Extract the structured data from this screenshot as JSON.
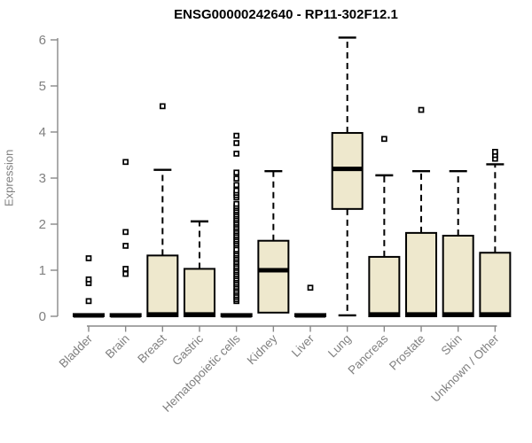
{
  "chart_data": {
    "type": "boxplot",
    "title": "ENSG00000242640 - RP11-302F12.1",
    "ylabel": "Expression",
    "xlabel": "",
    "ylim": [
      0,
      6
    ],
    "yticks": [
      0,
      1,
      2,
      3,
      4,
      5,
      6
    ],
    "grid": "off",
    "legend": "none",
    "categories": [
      "Bladder",
      "Brain",
      "Breast",
      "Gastric",
      "Hematopoietic cells",
      "Kidney",
      "Liver",
      "Lung",
      "Pancreas",
      "Prostate",
      "Skin",
      "Unknown / Other"
    ],
    "colors": {
      "box_fill": "#EEE8CD",
      "box_stroke": "#000000",
      "median": "#000000",
      "whisker": "#000000",
      "outlier_fill": "#ffffff",
      "axis_line": "#888888",
      "tick_text": "#808080",
      "title_text": "#000000"
    },
    "series": [
      {
        "category": "Bladder",
        "q1": 0,
        "median": 0.02,
        "q3": 0.05,
        "whisker_low": 0,
        "whisker_high": 0.05,
        "outliers": [
          0.33,
          0.72,
          0.8,
          1.26
        ]
      },
      {
        "category": "Brain",
        "q1": 0,
        "median": 0.02,
        "q3": 0.05,
        "whisker_low": 0,
        "whisker_high": 0.05,
        "outliers": [
          0.92,
          1.03,
          1.53,
          1.83,
          3.35
        ]
      },
      {
        "category": "Breast",
        "q1": 0,
        "median": 0.04,
        "q3": 1.32,
        "whisker_low": 0,
        "whisker_high": 3.18,
        "outliers": [
          4.56
        ]
      },
      {
        "category": "Gastric",
        "q1": 0,
        "median": 0.04,
        "q3": 1.03,
        "whisker_low": 0,
        "whisker_high": 2.06,
        "outliers": []
      },
      {
        "category": "Hematopoietic cells",
        "q1": 0,
        "median": 0.02,
        "q3": 0.05,
        "whisker_low": 0,
        "whisker_high": 0.05,
        "outliers": [
          0.33,
          0.37,
          0.42,
          0.46,
          0.51,
          0.55,
          0.6,
          0.64,
          0.69,
          0.73,
          0.78,
          0.82,
          0.87,
          0.91,
          0.96,
          1.0,
          1.05,
          1.09,
          1.14,
          1.18,
          1.23,
          1.27,
          1.32,
          1.36,
          1.41,
          1.45,
          1.54,
          1.58,
          1.63,
          1.67,
          1.72,
          1.76,
          1.81,
          1.85,
          1.9,
          1.94,
          1.99,
          2.03,
          2.08,
          2.12,
          2.17,
          2.21,
          2.26,
          2.3,
          2.35,
          2.39,
          2.44,
          2.58,
          2.63,
          2.68,
          2.73,
          2.85,
          2.99,
          3.12,
          3.53,
          3.76,
          3.92
        ]
      },
      {
        "category": "Kidney",
        "q1": 0.08,
        "median": 1.0,
        "q3": 1.64,
        "whisker_low": 0.08,
        "whisker_high": 3.15,
        "outliers": []
      },
      {
        "category": "Liver",
        "q1": 0,
        "median": 0.02,
        "q3": 0.05,
        "whisker_low": 0,
        "whisker_high": 0.05,
        "outliers": [
          0.62
        ]
      },
      {
        "category": "Lung",
        "q1": 2.33,
        "median": 3.2,
        "q3": 3.98,
        "whisker_low": 0.02,
        "whisker_high": 6.05,
        "outliers": []
      },
      {
        "category": "Pancreas",
        "q1": 0,
        "median": 0.04,
        "q3": 1.29,
        "whisker_low": 0,
        "whisker_high": 3.06,
        "outliers": [
          3.85
        ]
      },
      {
        "category": "Prostate",
        "q1": 0,
        "median": 0.04,
        "q3": 1.81,
        "whisker_low": 0,
        "whisker_high": 3.15,
        "outliers": [
          4.48
        ]
      },
      {
        "category": "Skin",
        "q1": 0,
        "median": 0.04,
        "q3": 1.75,
        "whisker_low": 0,
        "whisker_high": 3.15,
        "outliers": []
      },
      {
        "category": "Unknown / Other",
        "q1": 0,
        "median": 0.04,
        "q3": 1.38,
        "whisker_low": 0,
        "whisker_high": 3.3,
        "outliers": [
          3.42,
          3.5,
          3.57
        ]
      }
    ]
  }
}
